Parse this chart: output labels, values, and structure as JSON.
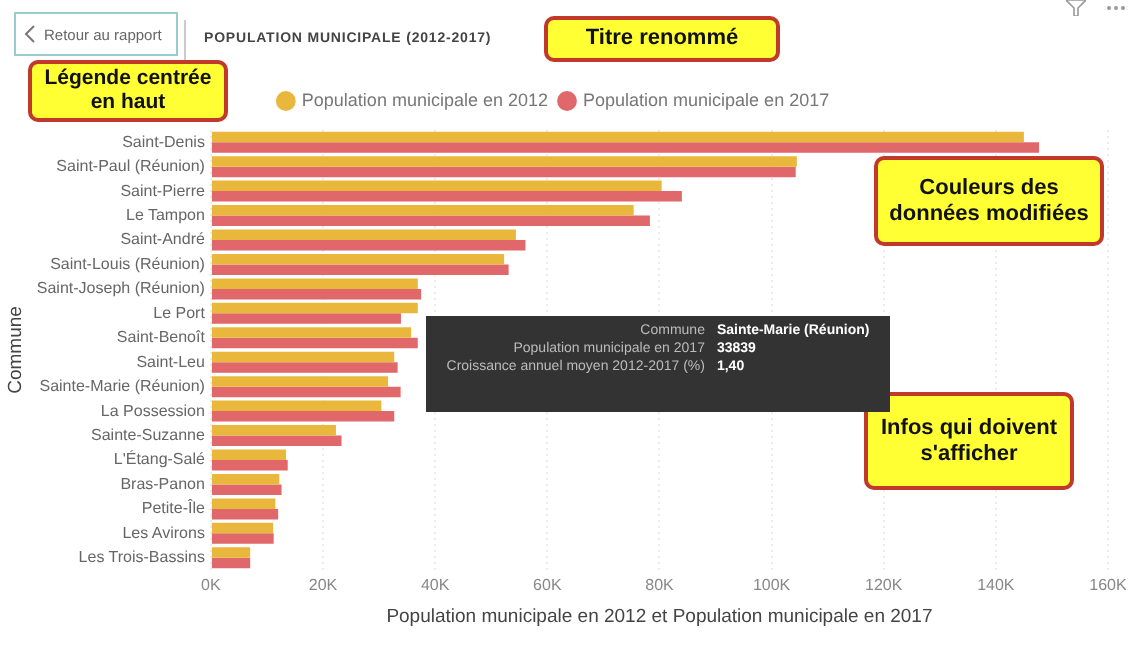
{
  "chart_data": {
    "type": "bar",
    "orientation": "horizontal",
    "title": "POPULATION MUNICIPALE (2012-2017)",
    "xlabel": "Population municipale en 2012 et Population municipale en 2017",
    "ylabel": "Commune",
    "categories": [
      "Saint-Denis",
      "Saint-Paul (Réunion)",
      "Saint-Pierre",
      "Le Tampon",
      "Saint-André",
      "Saint-Louis (Réunion)",
      "Saint-Joseph (Réunion)",
      "Le Port",
      "Saint-Benoît",
      "Saint-Leu",
      "Sainte-Marie (Réunion)",
      "La Possession",
      "Sainte-Suzanne",
      "L'Étang-Salé",
      "Bras-Panon",
      "Petite-Île",
      "Les Avirons",
      "Les Trois-Bassins"
    ],
    "series": [
      {
        "name": "Population municipale en 2012",
        "color": "#e8b73c",
        "values": [
          145000,
          104500,
          80400,
          75400,
          54400,
          52300,
          36900,
          36900,
          35700,
          32700,
          31600,
          30400,
          22300,
          13400,
          12200,
          11500,
          11100,
          7000
        ]
      },
      {
        "name": "Population municipale en 2017",
        "color": "#e0676a",
        "values": [
          147700,
          104300,
          84000,
          78300,
          56100,
          53100,
          37500,
          33900,
          36900,
          33300,
          33839,
          32700,
          23300,
          13700,
          12600,
          12000,
          11200,
          7000
        ]
      }
    ],
    "xlim": [
      0,
      160000
    ],
    "xticks": [
      {
        "value": 0,
        "label": "0K"
      },
      {
        "value": 20000,
        "label": "20K"
      },
      {
        "value": 40000,
        "label": "40K"
      },
      {
        "value": 60000,
        "label": "60K"
      },
      {
        "value": 80000,
        "label": "80K"
      },
      {
        "value": 100000,
        "label": "100K"
      },
      {
        "value": 120000,
        "label": "120K"
      },
      {
        "value": 140000,
        "label": "140K"
      },
      {
        "value": 160000,
        "label": "160K"
      }
    ],
    "grid": "x",
    "legend": "top",
    "annotations": [
      "Retour au rapport",
      "Titre renommé",
      "Légende centrée en haut",
      "Couleurs des données modifiées",
      "Infos qui doivent s'afficher",
      "Commune",
      "Sainte-Marie (Réunion)",
      "Population municipale en 2017",
      "33839",
      "Croissance annuel moyen 2012-2017 (%)",
      "1,40"
    ]
  }
}
